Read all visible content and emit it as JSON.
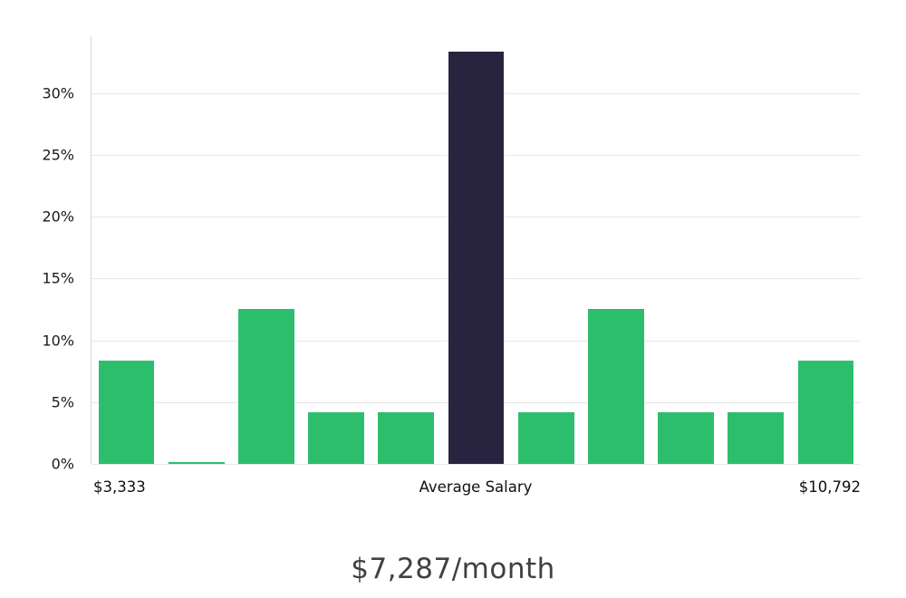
{
  "chart_data": {
    "type": "bar",
    "title": "$7,287/month",
    "xlabel": "",
    "ylabel": "",
    "x_axis_labels": {
      "left": "$3,333",
      "center": "Average Salary",
      "right": "$10,792"
    },
    "y_ticks": [
      0,
      5,
      10,
      15,
      20,
      25,
      30
    ],
    "y_tick_labels": [
      "0%",
      "5%",
      "10%",
      "15%",
      "20%",
      "25%",
      "30%"
    ],
    "ylim": [
      0,
      34.6
    ],
    "grid": true,
    "legend": false,
    "values": [
      8.33,
      0.15,
      12.5,
      4.17,
      4.17,
      33.33,
      4.17,
      12.5,
      4.17,
      4.17,
      8.33
    ],
    "highlight_index": 5,
    "colors": {
      "bar": "#2dbe6d",
      "highlight_bar": "#282440",
      "gridline": "#e7e7e7",
      "axis": "#d6d6d6",
      "tick_text": "#1a1a1a",
      "title_text": "#404040"
    }
  }
}
